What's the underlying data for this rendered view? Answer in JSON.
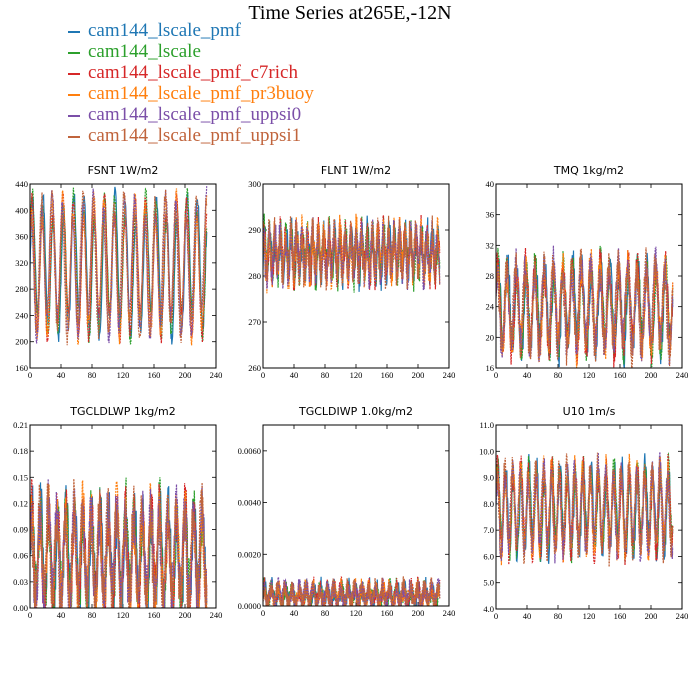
{
  "title": "Time Series at265E,-12N",
  "colors": {
    "cam144_lscale_pmf": "#1f77b4",
    "cam144_lscale": "#2ca02c",
    "cam144_lscale_pmf_c7rich": "#d62728",
    "cam144_lscale_pmf_pr3buoy": "#ff7f0e",
    "cam144_lscale_pmf_uppsi0": "#7b4fa8",
    "cam144_lscale_pmf_uppsi1": "#c0643c"
  },
  "legend": [
    "cam144_lscale_pmf",
    "cam144_lscale",
    "cam144_lscale_pmf_c7rich",
    "cam144_lscale_pmf_pr3buoy",
    "cam144_lscale_pmf_uppsi0",
    "cam144_lscale_pmf_uppsi1"
  ],
  "chart_data": [
    {
      "type": "line",
      "title": "FSNT   1W/m2",
      "xlim": [
        0,
        240
      ],
      "xticks": [
        "0",
        "40",
        "80",
        "120",
        "160",
        "200",
        "240"
      ],
      "ylim": [
        160,
        440
      ],
      "yticks": [
        "160",
        "200",
        "240",
        "280",
        "320",
        "360",
        "400",
        "440"
      ],
      "approx": {
        "mean": 315,
        "amp": 90,
        "period": 13.3,
        "noise": 10,
        "seed": 1
      },
      "series": [
        {
          "name": "cam144_lscale_pmf"
        },
        {
          "name": "cam144_lscale"
        },
        {
          "name": "cam144_lscale_pmf_c7rich"
        },
        {
          "name": "cam144_lscale_pmf_pr3buoy"
        },
        {
          "name": "cam144_lscale_pmf_uppsi0"
        },
        {
          "name": "cam144_lscale_pmf_uppsi1"
        }
      ]
    },
    {
      "type": "line",
      "title": "FLNT   1W/m2",
      "xlim": [
        0,
        240
      ],
      "xticks": [
        "0",
        "40",
        "80",
        "120",
        "160",
        "200",
        "240"
      ],
      "ylim": [
        260,
        300
      ],
      "yticks": [
        "260",
        "270",
        "280",
        "290",
        "300"
      ],
      "approx": {
        "mean": 285,
        "amp": 4,
        "period": 7,
        "noise": 4,
        "seed": 2
      },
      "series": [
        {
          "name": "cam144_lscale_pmf"
        },
        {
          "name": "cam144_lscale"
        },
        {
          "name": "cam144_lscale_pmf_c7rich"
        },
        {
          "name": "cam144_lscale_pmf_pr3buoy"
        },
        {
          "name": "cam144_lscale_pmf_uppsi0"
        },
        {
          "name": "cam144_lscale_pmf_uppsi1"
        }
      ]
    },
    {
      "type": "line",
      "title": "TMQ   1kg/m2",
      "xlim": [
        0,
        240
      ],
      "xticks": [
        "0",
        "40",
        "80",
        "120",
        "160",
        "200",
        "240"
      ],
      "ylim": [
        16,
        40
      ],
      "yticks": [
        "16",
        "20",
        "24",
        "28",
        "32",
        "36",
        "40"
      ],
      "approx": {
        "mean": 24,
        "amp": 5,
        "period": 12,
        "noise": 2,
        "seed": 3
      },
      "series": [
        {
          "name": "cam144_lscale_pmf"
        },
        {
          "name": "cam144_lscale"
        },
        {
          "name": "cam144_lscale_pmf_c7rich"
        },
        {
          "name": "cam144_lscale_pmf_pr3buoy"
        },
        {
          "name": "cam144_lscale_pmf_uppsi0"
        },
        {
          "name": "cam144_lscale_pmf_uppsi1"
        }
      ]
    },
    {
      "type": "line",
      "title": "TGCLDLWP   1kg/m2",
      "xlim": [
        0,
        240
      ],
      "xticks": [
        "0",
        "40",
        "80",
        "120",
        "160",
        "200",
        "240"
      ],
      "ylim": [
        0,
        0.21
      ],
      "yticks": [
        "0.00",
        "0.03",
        "0.06",
        "0.09",
        "0.12",
        "0.15",
        "0.18",
        "0.21"
      ],
      "approx": {
        "mean": 0.06,
        "amp": 0.05,
        "period": 11,
        "noise": 0.03,
        "seed": 4
      },
      "series": [
        {
          "name": "cam144_lscale_pmf"
        },
        {
          "name": "cam144_lscale"
        },
        {
          "name": "cam144_lscale_pmf_c7rich"
        },
        {
          "name": "cam144_lscale_pmf_pr3buoy"
        },
        {
          "name": "cam144_lscale_pmf_uppsi0"
        },
        {
          "name": "cam144_lscale_pmf_uppsi1"
        }
      ]
    },
    {
      "type": "line",
      "title": "TGCLDIWP   1.0kg/m2",
      "xlim": [
        0,
        240
      ],
      "xticks": [
        "0",
        "40",
        "80",
        "120",
        "160",
        "200",
        "240"
      ],
      "ylim": [
        0,
        0.007
      ],
      "yticks": [
        "0.0000",
        "0.0020",
        "0.0040",
        "0.0060"
      ],
      "approx": {
        "mean": 0.0004,
        "amp": 0.0003,
        "period": 9,
        "noise": 0.0004,
        "seed": 5
      },
      "series": [
        {
          "name": "cam144_lscale_pmf"
        },
        {
          "name": "cam144_lscale"
        },
        {
          "name": "cam144_lscale_pmf_c7rich"
        },
        {
          "name": "cam144_lscale_pmf_pr3buoy"
        },
        {
          "name": "cam144_lscale_pmf_uppsi0"
        },
        {
          "name": "cam144_lscale_pmf_uppsi1"
        }
      ]
    },
    {
      "type": "line",
      "title": "U10   1m/s",
      "xlim": [
        0,
        240
      ],
      "xticks": [
        "0",
        "40",
        "80",
        "120",
        "160",
        "200",
        "240"
      ],
      "ylim": [
        4,
        11
      ],
      "yticks": [
        "4.0",
        "5.0",
        "6.0",
        "7.0",
        "8.0",
        "9.0",
        "10.0",
        "11.0"
      ],
      "approx": {
        "mean": 7.8,
        "amp": 1.4,
        "period": 10,
        "noise": 0.5,
        "seed": 6
      },
      "series": [
        {
          "name": "cam144_lscale_pmf"
        },
        {
          "name": "cam144_lscale"
        },
        {
          "name": "cam144_lscale_pmf_c7rich"
        },
        {
          "name": "cam144_lscale_pmf_pr3buoy"
        },
        {
          "name": "cam144_lscale_pmf_uppsi0"
        },
        {
          "name": "cam144_lscale_pmf_uppsi1"
        }
      ]
    }
  ]
}
